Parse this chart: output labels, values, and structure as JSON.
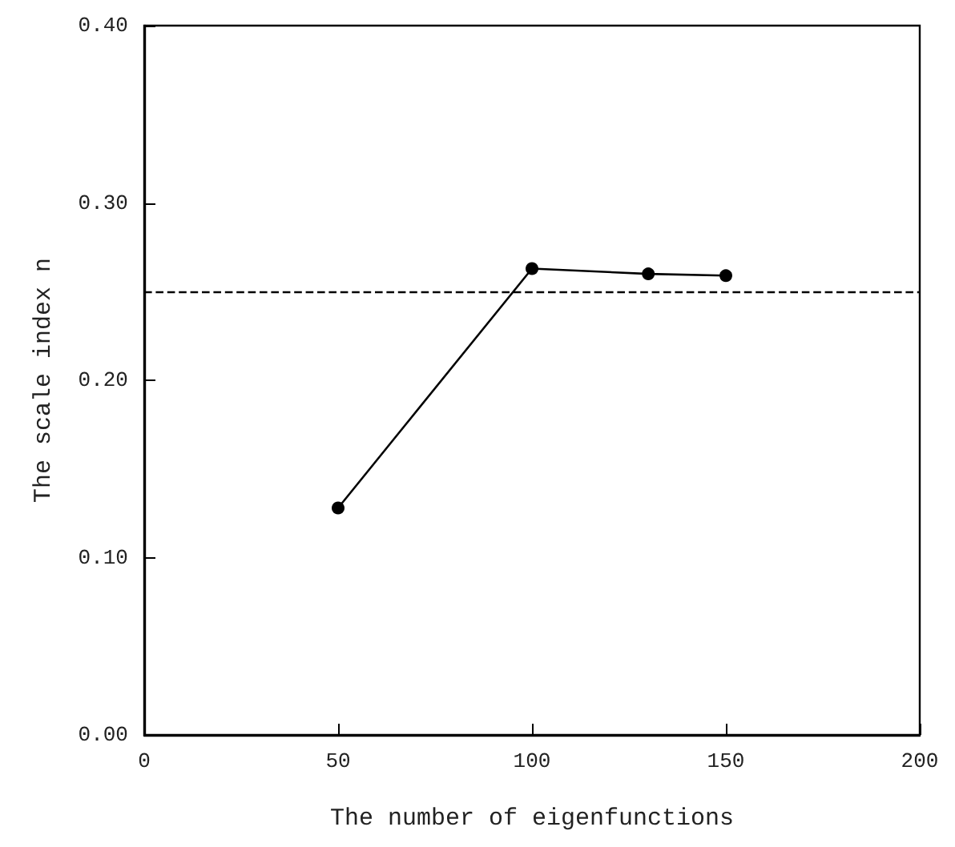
{
  "chart_data": {
    "type": "line",
    "xlabel": "The number of eigenfunctions",
    "ylabel": "The scale index n",
    "x": [
      50,
      100,
      130,
      150
    ],
    "series": [
      {
        "color": "#000000",
        "values": [
          0.128,
          0.263,
          0.26,
          0.259
        ]
      }
    ],
    "xlim": [
      0,
      200
    ],
    "xticks": [
      0,
      50,
      100,
      150,
      200
    ],
    "ylim": [
      0,
      0.4
    ],
    "yticks": [
      {
        "value": 0,
        "label": "0.00"
      },
      {
        "value": 0.1,
        "label": "0.10"
      },
      {
        "value": 0.2,
        "label": "0.20"
      },
      {
        "value": 0.3,
        "label": "0.30"
      },
      {
        "value": 0.4,
        "label": "0.40"
      }
    ],
    "ref_lines": [
      {
        "axis": "y",
        "value": 0.25,
        "line_style": "dashed",
        "color": "#000000"
      }
    ],
    "marker": "circle",
    "line_style": "solid",
    "grid": false
  }
}
